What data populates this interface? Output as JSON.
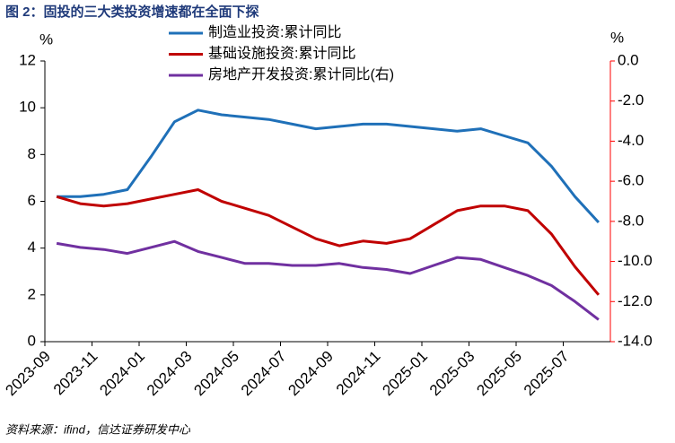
{
  "chart_data": {
    "type": "line",
    "title": "图 2：固投的三大类投资增速都在全面下探",
    "source": "资料来源：ifind，信达证券研发中心",
    "y_unit": "%",
    "y2_unit": "%",
    "categories": [
      "2023-09",
      null,
      "2023-11",
      null,
      "2024-01",
      null,
      "2024-03",
      null,
      "2024-05",
      null,
      "2024-07",
      null,
      "2024-09",
      null,
      "2024-11",
      null,
      "2025-01",
      null,
      "2025-03",
      null,
      "2025-05",
      null,
      "2025-07",
      null
    ],
    "ylim": [
      0,
      12
    ],
    "yticks": [
      0,
      2,
      4,
      6,
      8,
      10,
      12
    ],
    "y2lim": [
      -14,
      0
    ],
    "y2ticks": [
      {
        "value": 0,
        "label": "0.0"
      },
      {
        "value": -2,
        "label": "-2.0"
      },
      {
        "value": -4,
        "label": "-4.0"
      },
      {
        "value": -6,
        "label": "-6.0"
      },
      {
        "value": -8,
        "label": "-8.0"
      },
      {
        "value": -10,
        "label": "-10.0"
      },
      {
        "value": -12,
        "label": "-12.0"
      },
      {
        "value": -14,
        "label": "-14.0"
      }
    ],
    "y2_color": "#ff0000",
    "series": [
      {
        "name": "制造业投资:累计同比",
        "color": "#1f70b8",
        "axis": "y",
        "values": [
          6.2,
          6.2,
          6.3,
          6.5,
          7.9,
          9.4,
          9.9,
          9.7,
          9.6,
          9.5,
          9.3,
          9.1,
          9.2,
          9.3,
          9.3,
          9.2,
          9.1,
          9.0,
          9.1,
          8.8,
          8.5,
          7.5,
          6.2,
          5.1
        ]
      },
      {
        "name": "基础设施投资:累计同比",
        "color": "#c00000",
        "axis": "y",
        "values": [
          6.2,
          5.9,
          5.8,
          5.9,
          6.1,
          6.3,
          6.5,
          6.0,
          5.7,
          5.4,
          4.9,
          4.4,
          4.1,
          4.3,
          4.2,
          4.4,
          5.0,
          5.6,
          5.8,
          5.8,
          5.6,
          4.6,
          3.2,
          2.0
        ]
      },
      {
        "name": "房地产开发投资:累计同比(右)",
        "color": "#7030a0",
        "axis": "y2",
        "values": [
          -9.1,
          -9.3,
          -9.4,
          -9.6,
          -9.3,
          -9.0,
          -9.5,
          -9.8,
          -10.1,
          -10.1,
          -10.2,
          -10.2,
          -10.1,
          -10.3,
          -10.4,
          -10.6,
          -10.2,
          -9.8,
          -9.9,
          -10.3,
          -10.7,
          -11.2,
          -12.0,
          -12.9
        ]
      }
    ]
  }
}
